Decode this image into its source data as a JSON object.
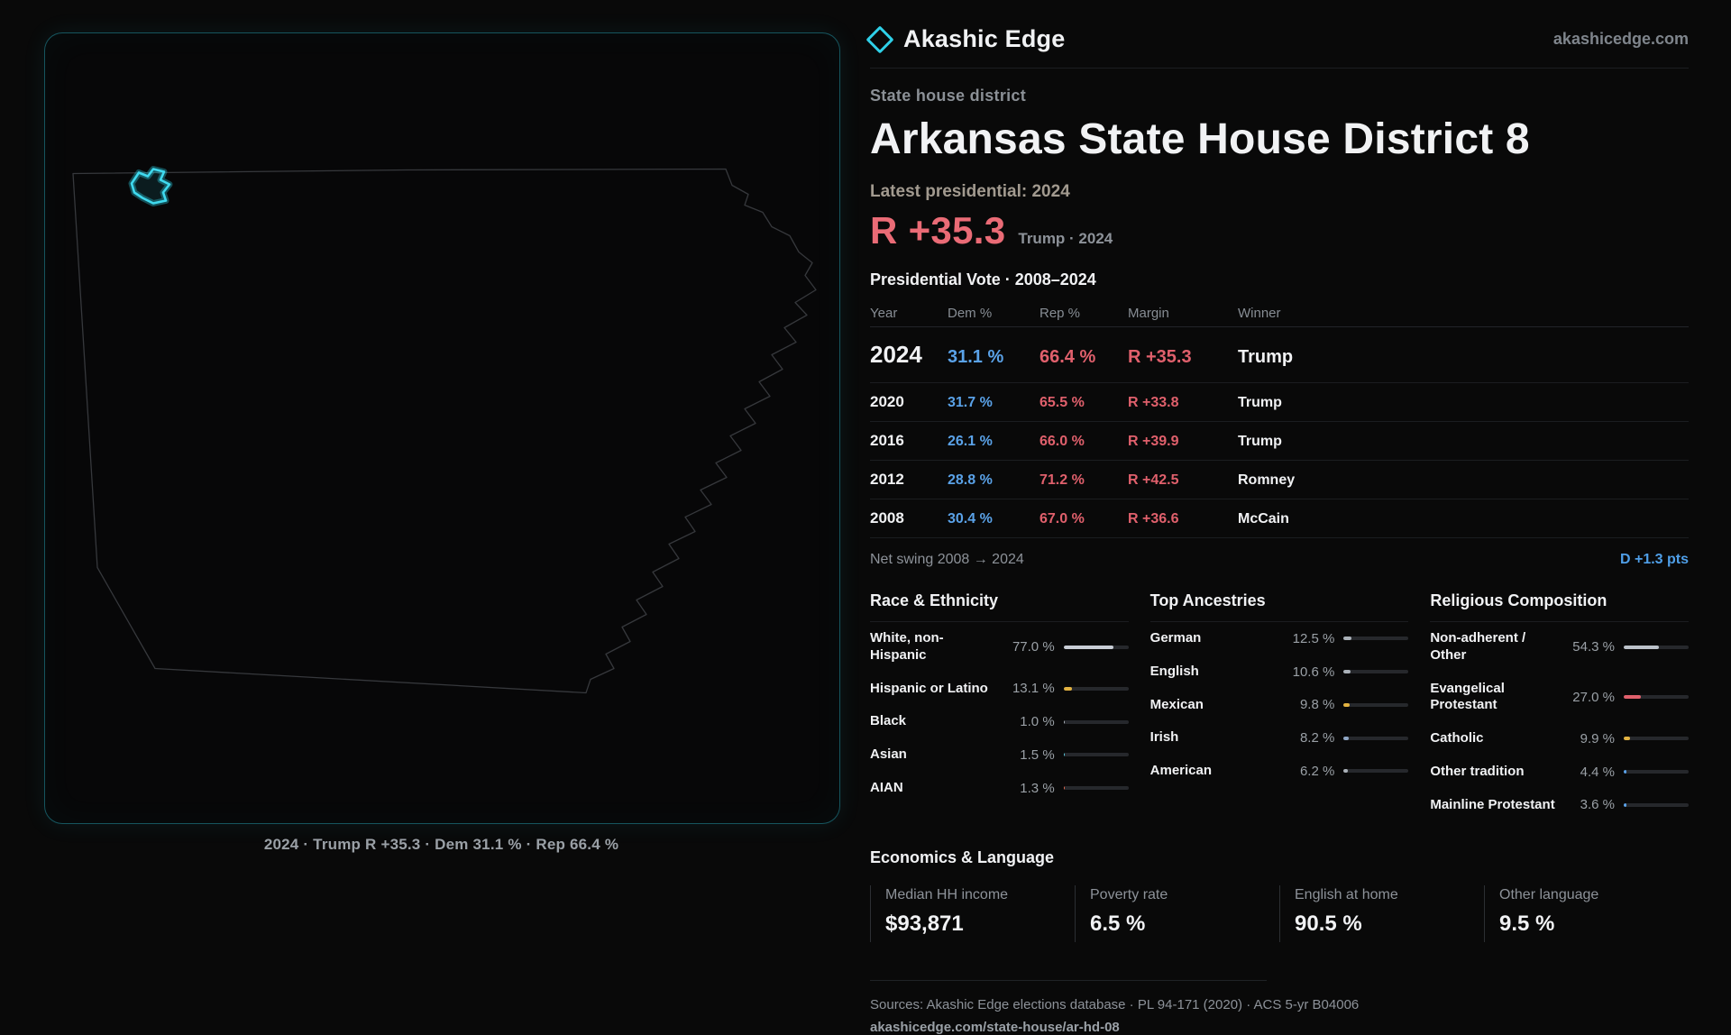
{
  "brand": {
    "name": "Akashic Edge",
    "site": "akashicedge.com"
  },
  "hero": {
    "kicker": "State house district",
    "title": "Arkansas State House District 8",
    "latest_label": "Latest presidential: 2024",
    "headline_margin": "R +35.3",
    "headline_context": "Trump · 2024"
  },
  "map": {
    "caption": "2024 · Trump R +35.3 · Dem 31.1 % · Rep 66.4 %"
  },
  "vote": {
    "title": "Presidential Vote · 2008–2024",
    "columns": [
      "Year",
      "Dem %",
      "Rep %",
      "Margin",
      "Winner"
    ],
    "rows": [
      {
        "year": "2024",
        "dem": "31.1 %",
        "rep": "66.4 %",
        "margin": "R +35.3",
        "winner": "Trump"
      },
      {
        "year": "2020",
        "dem": "31.7 %",
        "rep": "65.5 %",
        "margin": "R +33.8",
        "winner": "Trump"
      },
      {
        "year": "2016",
        "dem": "26.1 %",
        "rep": "66.0 %",
        "margin": "R +39.9",
        "winner": "Trump"
      },
      {
        "year": "2012",
        "dem": "28.8 %",
        "rep": "71.2 %",
        "margin": "R +42.5",
        "winner": "Romney"
      },
      {
        "year": "2008",
        "dem": "30.4 %",
        "rep": "67.0 %",
        "margin": "R +36.6",
        "winner": "McCain"
      }
    ],
    "net_swing_label": "Net swing 2008 → 2024",
    "net_swing_value": "D +1.3 pts"
  },
  "race": {
    "title": "Race & Ethnicity",
    "items": [
      {
        "label": "White, non-Hispanic",
        "value": "77.0 %",
        "pct": 77.0,
        "color": "#c9ced6"
      },
      {
        "label": "Hispanic or Latino",
        "value": "13.1 %",
        "pct": 13.1,
        "color": "#e3b341"
      },
      {
        "label": "Black",
        "value": "1.0 %",
        "pct": 1.0,
        "color": "#aab1b8"
      },
      {
        "label": "Asian",
        "value": "1.5 %",
        "pct": 1.5,
        "color": "#57c3d8"
      },
      {
        "label": "AIAN",
        "value": "1.3 %",
        "pct": 1.3,
        "color": "#e06a4e"
      }
    ]
  },
  "ancestries": {
    "title": "Top Ancestries",
    "items": [
      {
        "label": "German",
        "value": "12.5 %",
        "pct": 12.5,
        "color": "#aab1b8"
      },
      {
        "label": "English",
        "value": "10.6 %",
        "pct": 10.6,
        "color": "#aab1b8"
      },
      {
        "label": "Mexican",
        "value": "9.8 %",
        "pct": 9.8,
        "color": "#e3b341"
      },
      {
        "label": "Irish",
        "value": "8.2 %",
        "pct": 8.2,
        "color": "#8fa6c4"
      },
      {
        "label": "American",
        "value": "6.2 %",
        "pct": 6.2,
        "color": "#aab1b8"
      }
    ]
  },
  "religion": {
    "title": "Religious Composition",
    "items": [
      {
        "label": "Non-adherent / Other",
        "value": "54.3 %",
        "pct": 54.3,
        "color": "#bcc2ca"
      },
      {
        "label": "Evangelical Protestant",
        "value": "27.0 %",
        "pct": 27.0,
        "color": "#e0606c"
      },
      {
        "label": "Catholic",
        "value": "9.9 %",
        "pct": 9.9,
        "color": "#e3b341"
      },
      {
        "label": "Other tradition",
        "value": "4.4 %",
        "pct": 4.4,
        "color": "#5aa2e8"
      },
      {
        "label": "Mainline Protestant",
        "value": "3.6 %",
        "pct": 3.6,
        "color": "#5aa2e8"
      }
    ]
  },
  "economics": {
    "title": "Economics & Language",
    "stats": [
      {
        "label": "Median HH income",
        "value": "$93,871"
      },
      {
        "label": "Poverty rate",
        "value": "6.5 %"
      },
      {
        "label": "English at home",
        "value": "90.5 %"
      },
      {
        "label": "Other language",
        "value": "9.5 %"
      }
    ]
  },
  "footer": {
    "sources": "Sources: Akashic Edge elections database · PL 94-171 (2020) · ACS 5-yr B04006",
    "permalink": "akashicedge.com/state-house/ar-hd-08"
  },
  "chart_data": [
    {
      "type": "table",
      "title": "Presidential Vote · 2008–2024",
      "columns": [
        "Year",
        "Dem %",
        "Rep %",
        "Margin",
        "Winner"
      ],
      "rows": [
        [
          2024,
          31.1,
          66.4,
          "R +35.3",
          "Trump"
        ],
        [
          2020,
          31.7,
          65.5,
          "R +33.8",
          "Trump"
        ],
        [
          2016,
          26.1,
          66.0,
          "R +39.9",
          "Trump"
        ],
        [
          2012,
          28.8,
          71.2,
          "R +42.5",
          "Romney"
        ],
        [
          2008,
          30.4,
          67.0,
          "R +36.6",
          "McCain"
        ]
      ],
      "annotations": [
        "Net swing 2008 → 2024: D +1.3 pts",
        "Latest presidential 2024: R +35.3 (Trump)"
      ]
    },
    {
      "type": "bar",
      "title": "Race & Ethnicity",
      "categories": [
        "White, non-Hispanic",
        "Hispanic or Latino",
        "Black",
        "Asian",
        "AIAN"
      ],
      "values": [
        77.0,
        13.1,
        1.0,
        1.5,
        1.3
      ],
      "unit": "%",
      "xlim": [
        0,
        100
      ]
    },
    {
      "type": "bar",
      "title": "Top Ancestries",
      "categories": [
        "German",
        "English",
        "Mexican",
        "Irish",
        "American"
      ],
      "values": [
        12.5,
        10.6,
        9.8,
        8.2,
        6.2
      ],
      "unit": "%",
      "xlim": [
        0,
        100
      ]
    },
    {
      "type": "bar",
      "title": "Religious Composition",
      "categories": [
        "Non-adherent / Other",
        "Evangelical Protestant",
        "Catholic",
        "Other tradition",
        "Mainline Protestant"
      ],
      "values": [
        54.3,
        27.0,
        9.9,
        4.4,
        3.6
      ],
      "unit": "%",
      "xlim": [
        0,
        100
      ]
    }
  ]
}
